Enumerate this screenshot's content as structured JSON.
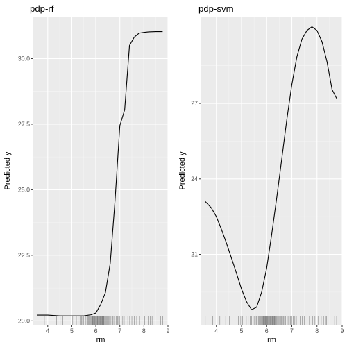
{
  "chart_data": [
    {
      "type": "line",
      "title": "pdp-rf",
      "xlabel": "rm",
      "ylabel": "Predicted y",
      "xlim": [
        3.4,
        9.0
      ],
      "ylim": [
        19.85,
        31.6
      ],
      "xticks": [
        4,
        5,
        6,
        7,
        8,
        9
      ],
      "yticks": [
        20.0,
        22.5,
        25.0,
        27.5,
        30.0
      ],
      "ytick_labels": [
        "20.0",
        "22.5",
        "25.0",
        "27.5",
        "30.0"
      ],
      "grid": true,
      "x": [
        3.56,
        4.0,
        4.5,
        5.0,
        5.5,
        5.8,
        6.0,
        6.2,
        6.4,
        6.6,
        6.8,
        7.0,
        7.2,
        7.4,
        7.6,
        7.8,
        8.0,
        8.2,
        8.5,
        8.78
      ],
      "y": [
        20.22,
        20.22,
        20.19,
        20.19,
        20.19,
        20.23,
        20.3,
        20.62,
        21.08,
        22.2,
        24.6,
        27.45,
        28.05,
        30.5,
        30.82,
        30.97,
        31.0,
        31.02,
        31.03,
        31.03
      ],
      "rug": [
        3.56,
        3.86,
        4.14,
        4.37,
        4.52,
        4.63,
        4.88,
        4.97,
        5.04,
        5.19,
        5.27,
        5.34,
        5.4,
        5.45,
        5.5,
        5.55,
        5.59,
        5.63,
        5.67,
        5.7,
        5.73,
        5.76,
        5.79,
        5.82,
        5.84,
        5.86,
        5.88,
        5.9,
        5.92,
        5.94,
        5.96,
        5.98,
        6.0,
        6.02,
        6.04,
        6.06,
        6.08,
        6.1,
        6.12,
        6.14,
        6.16,
        6.18,
        6.2,
        6.22,
        6.24,
        6.26,
        6.28,
        6.3,
        6.32,
        6.34,
        6.37,
        6.4,
        6.43,
        6.46,
        6.49,
        6.52,
        6.55,
        6.59,
        6.63,
        6.67,
        6.71,
        6.75,
        6.8,
        6.85,
        6.9,
        6.95,
        7.0,
        7.06,
        7.12,
        7.18,
        7.25,
        7.33,
        7.41,
        7.5,
        7.6,
        7.7,
        7.82,
        7.92,
        8.04,
        8.17,
        8.26,
        8.34,
        8.38,
        8.7,
        8.78
      ]
    },
    {
      "type": "line",
      "title": "pdp-svm",
      "xlabel": "rm",
      "ylabel": "Predicted y",
      "xlim": [
        3.4,
        9.0
      ],
      "ylim": [
        18.2,
        30.45
      ],
      "xticks": [
        4,
        5,
        6,
        7,
        8,
        9
      ],
      "yticks": [
        21,
        24,
        27
      ],
      "ytick_labels": [
        "21",
        "24",
        "27"
      ],
      "grid": true,
      "x": [
        3.56,
        3.8,
        4.0,
        4.2,
        4.4,
        4.6,
        4.8,
        5.0,
        5.2,
        5.4,
        5.6,
        5.8,
        6.0,
        6.2,
        6.4,
        6.6,
        6.8,
        7.0,
        7.2,
        7.4,
        7.6,
        7.8,
        8.0,
        8.2,
        8.4,
        8.6,
        8.78
      ],
      "y": [
        23.1,
        22.85,
        22.5,
        22.0,
        21.45,
        20.85,
        20.25,
        19.62,
        19.12,
        18.8,
        18.9,
        19.5,
        20.45,
        21.8,
        23.25,
        24.8,
        26.35,
        27.75,
        28.85,
        29.55,
        29.9,
        30.05,
        29.9,
        29.45,
        28.65,
        27.55,
        27.2
      ],
      "rug": [
        3.56,
        3.86,
        4.14,
        4.37,
        4.52,
        4.63,
        4.88,
        4.97,
        5.04,
        5.19,
        5.27,
        5.34,
        5.4,
        5.45,
        5.5,
        5.55,
        5.59,
        5.63,
        5.67,
        5.7,
        5.73,
        5.76,
        5.79,
        5.82,
        5.84,
        5.86,
        5.88,
        5.9,
        5.92,
        5.94,
        5.96,
        5.98,
        6.0,
        6.02,
        6.04,
        6.06,
        6.08,
        6.1,
        6.12,
        6.14,
        6.16,
        6.18,
        6.2,
        6.22,
        6.24,
        6.26,
        6.28,
        6.3,
        6.32,
        6.34,
        6.37,
        6.4,
        6.43,
        6.46,
        6.49,
        6.52,
        6.55,
        6.59,
        6.63,
        6.67,
        6.71,
        6.75,
        6.8,
        6.85,
        6.9,
        6.95,
        7.0,
        7.06,
        7.12,
        7.18,
        7.25,
        7.33,
        7.41,
        7.5,
        7.6,
        7.7,
        7.82,
        7.92,
        8.04,
        8.17,
        8.26,
        8.34,
        8.38,
        8.7,
        8.78
      ]
    }
  ]
}
